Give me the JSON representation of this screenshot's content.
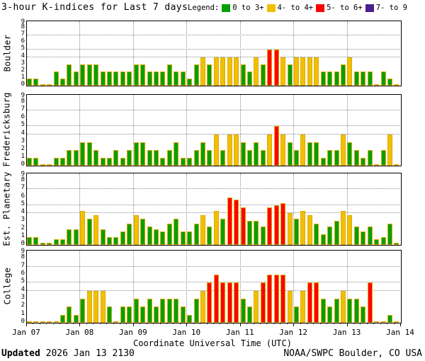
{
  "title": "3-hour K-indices for Last 7 days",
  "legend": {
    "label": "Legend:",
    "items": [
      {
        "label": "0 to 3+",
        "color": "#00a000"
      },
      {
        "label": "4- to 4+",
        "color": "#f0c000"
      },
      {
        "label": "5- to 6+",
        "color": "#ff0000"
      },
      {
        "label": "7- to 9",
        "color": "#4b1f8e"
      }
    ]
  },
  "x_axis": {
    "label": "Coordinate Universal Time (UTC)",
    "day_labels": [
      "Jan 07",
      "Jan 08",
      "Jan 09",
      "Jan 10",
      "Jan 11",
      "Jan 12",
      "Jan 13",
      "Jan 14"
    ]
  },
  "y_axis": {
    "range": [
      0,
      9
    ],
    "ticks": [
      9,
      8,
      7,
      6,
      5,
      4,
      3,
      2,
      1,
      0
    ],
    "dotted_levels": [
      7,
      5,
      4
    ]
  },
  "footer": {
    "updated_label": "Updated",
    "updated_value": " 2026 Jan 13 2130",
    "credit": "NOAA/SWPC Boulder, CO USA"
  },
  "colors": {
    "green": "#00a000",
    "yellow": "#f0c000",
    "red": "#ff0000",
    "purple": "#4b1f8e",
    "bar_outline": "#dfa900",
    "grid": "#8a8a8a",
    "frame": "#000000",
    "background": "#ffffff"
  },
  "chart_data": {
    "type": "bar",
    "title": "3-hour K-indices for Last 7 days",
    "xlabel": "Coordinate Universal Time (UTC)",
    "ylim": [
      0,
      9
    ],
    "bars_per_day": 8,
    "hours_per_bar": 3,
    "days": [
      "Jan 07",
      "Jan 08",
      "Jan 09",
      "Jan 10",
      "Jan 11",
      "Jan 12",
      "Jan 13"
    ],
    "color_rule": {
      "green": "K 0 to 3+",
      "yellow": "K 4- to 4+",
      "red": "K 5- to 6+",
      "purple": "K 7- to 9"
    },
    "series": [
      {
        "name": "Boulder",
        "values": [
          1,
          1,
          0,
          0,
          2,
          1,
          3,
          2,
          3,
          3,
          3,
          2,
          2,
          2,
          2,
          2,
          3,
          3,
          2,
          2,
          2,
          3,
          2,
          2,
          1,
          3,
          4,
          3,
          4,
          4,
          4,
          4,
          3,
          2,
          4,
          3,
          5,
          5,
          4,
          3,
          4,
          4,
          4,
          4,
          2,
          2,
          2,
          3,
          4,
          2,
          2,
          2,
          0,
          2,
          1,
          0
        ]
      },
      {
        "name": "Fredericksburg",
        "values": [
          1,
          1,
          0,
          0,
          1,
          1,
          2,
          2,
          3,
          3,
          2,
          1,
          1,
          2,
          1,
          2,
          3,
          3,
          2,
          2,
          1,
          2,
          3,
          1,
          1,
          2,
          3,
          2,
          4,
          2,
          4,
          4,
          3,
          2,
          3,
          2,
          4,
          5,
          4,
          3,
          2,
          4,
          3,
          3,
          1,
          2,
          2,
          4,
          3,
          2,
          1,
          2,
          0,
          2,
          4,
          0
        ]
      },
      {
        "name": "Est. Planetary",
        "values": [
          1,
          1,
          0.3,
          0.3,
          0.7,
          0.7,
          2,
          2,
          4.3,
          3.3,
          3.7,
          2,
          1,
          1,
          1.7,
          2.7,
          3.7,
          3.3,
          2.3,
          2,
          1.7,
          2.7,
          3.3,
          1.7,
          1.7,
          2.7,
          3.7,
          2.3,
          4.3,
          3.3,
          6,
          5.7,
          4.7,
          3,
          3,
          2.3,
          4.7,
          5,
          5.3,
          4,
          3.3,
          4.3,
          3.7,
          2.7,
          1.3,
          2.3,
          3,
          4.3,
          3.7,
          2.3,
          1.7,
          2.3,
          0.7,
          1,
          2.7,
          0.3
        ]
      },
      {
        "name": "College",
        "values": [
          0,
          0,
          0,
          0,
          0,
          1,
          2,
          1,
          3,
          4,
          4,
          4,
          2,
          0,
          2,
          2,
          3,
          2,
          3,
          2,
          3,
          3,
          3,
          2,
          1,
          3,
          4,
          5,
          6,
          5,
          5,
          5,
          3,
          2,
          4,
          5,
          6,
          6,
          6,
          4,
          2,
          4,
          5,
          5,
          3,
          2,
          3,
          4,
          3,
          3,
          2,
          5,
          0,
          0,
          1,
          0
        ]
      }
    ]
  }
}
